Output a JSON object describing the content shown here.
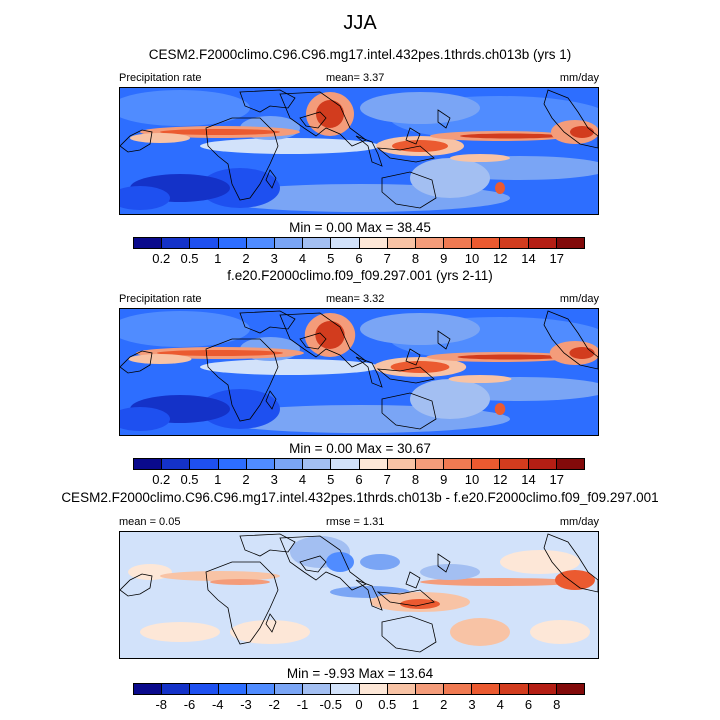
{
  "season": "JJA",
  "panels": [
    {
      "title": "CESM2.F2000climo.C96.C96.mg17.intel.432pes.1thrds.ch013b (yrs 1)",
      "left_label": "Precipitation rate",
      "center_label": "mean=   3.37",
      "right_label": "mm/day",
      "minmax": "Min =   0.00 Max =  38.45",
      "kind": "abs"
    },
    {
      "title": "f.e20.F2000climo.f09_f09.297.001 (yrs 2-11)",
      "left_label": "Precipitation rate",
      "center_label": "mean=   3.32",
      "right_label": "mm/day",
      "minmax": "Min =   0.00 Max =  30.67",
      "kind": "abs"
    },
    {
      "title": "CESM2.F2000climo.C96.C96.mg17.intel.432pes.1thrds.ch013b - f.e20.F2000climo.f09_f09.297.001",
      "left_label": "mean =   0.05",
      "center_label": "rmse =   1.31",
      "right_label": "mm/day",
      "minmax": "Min =  -9.93 Max =  13.64",
      "kind": "diff"
    }
  ],
  "colorbars": {
    "abs": {
      "labels": [
        "0.2",
        "0.5",
        "1",
        "2",
        "3",
        "4",
        "5",
        "6",
        "7",
        "8",
        "9",
        "10",
        "12",
        "14",
        "17"
      ],
      "colors": [
        "#0a0a8c",
        "#1432c8",
        "#1e50f0",
        "#2d6eff",
        "#508cff",
        "#7aa5f5",
        "#a3bff2",
        "#d2e2fa",
        "#fde7d7",
        "#f8c3a5",
        "#f49c7a",
        "#f07a52",
        "#eb5a30",
        "#d23c1e",
        "#b41e14",
        "#820a0a"
      ]
    },
    "diff": {
      "labels": [
        "-8",
        "-6",
        "-4",
        "-3",
        "-2",
        "-1",
        "-0.5",
        "0",
        "0.5",
        "1",
        "2",
        "3",
        "4",
        "6",
        "8"
      ],
      "colors": [
        "#0a0a8c",
        "#1432c8",
        "#1e50f0",
        "#2d6eff",
        "#508cff",
        "#7aa5f5",
        "#a3bff2",
        "#d2e2fa",
        "#fde7d7",
        "#f8c3a5",
        "#f49c7a",
        "#f07a52",
        "#eb5a30",
        "#d23c1e",
        "#b41e14",
        "#820a0a"
      ]
    }
  },
  "chart_data": [
    {
      "type": "heatmap",
      "title": "CESM2.F2000climo.C96.C96.mg17.intel.432pes.1thrds.ch013b (yrs 1)",
      "variable": "Precipitation rate",
      "units": "mm/day",
      "season": "JJA",
      "mean": 3.37,
      "min": 0.0,
      "max": 38.45,
      "contour_levels": [
        0.2,
        0.5,
        1,
        2,
        3,
        4,
        5,
        6,
        7,
        8,
        9,
        10,
        12,
        14,
        17
      ]
    },
    {
      "type": "heatmap",
      "title": "f.e20.F2000climo.f09_f09.297.001 (yrs 2-11)",
      "variable": "Precipitation rate",
      "units": "mm/day",
      "season": "JJA",
      "mean": 3.32,
      "min": 0.0,
      "max": 30.67,
      "contour_levels": [
        0.2,
        0.5,
        1,
        2,
        3,
        4,
        5,
        6,
        7,
        8,
        9,
        10,
        12,
        14,
        17
      ]
    },
    {
      "type": "heatmap",
      "title": "CESM2.F2000climo.C96.C96.mg17.intel.432pes.1thrds.ch013b - f.e20.F2000climo.f09_f09.297.001",
      "units": "mm/day",
      "season": "JJA",
      "mean": 0.05,
      "rmse": 1.31,
      "min": -9.93,
      "max": 13.64,
      "contour_levels": [
        -8,
        -6,
        -4,
        -3,
        -2,
        -1,
        -0.5,
        0,
        0.5,
        1,
        2,
        3,
        4,
        6,
        8
      ]
    }
  ]
}
